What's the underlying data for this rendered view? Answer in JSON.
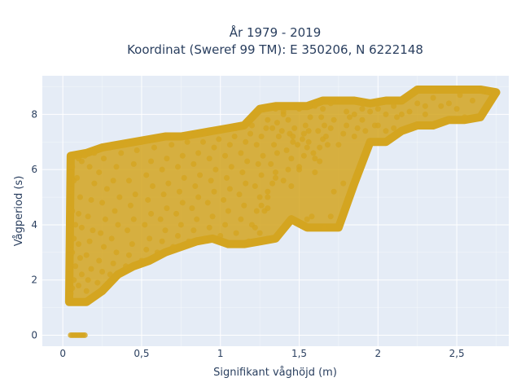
{
  "chart_data": {
    "type": "scatter",
    "title": [
      "År 1979 - 2019",
      "Koordinat (Sweref 99 TM): E 350206, N 6222148"
    ],
    "xlabel": "Signifikant våghöjd (m)",
    "ylabel": "Vågperiod (s)",
    "xlim": [
      -0.13,
      2.83
    ],
    "ylim": [
      -0.4,
      9.4
    ],
    "xticks": [
      0,
      0.5,
      1,
      1.5,
      2,
      2.5
    ],
    "xtick_labels": [
      "0",
      "0,5",
      "1",
      "1,5",
      "2",
      "2,5"
    ],
    "yticks": [
      0,
      2,
      4,
      6,
      8
    ],
    "ytick_labels": [
      "0",
      "2",
      "4",
      "6",
      "8"
    ],
    "grid": true,
    "marker_color": "#d4a520",
    "plot_bg_color": "#e5ecf6",
    "points": [
      [
        0.05,
        1.5
      ],
      [
        0.06,
        1.7
      ],
      [
        0.07,
        2.0
      ],
      [
        0.08,
        2.5
      ],
      [
        0.06,
        3.0
      ],
      [
        0.07,
        3.5
      ],
      [
        0.08,
        4.0
      ],
      [
        0.06,
        4.5
      ],
      [
        0.05,
        5.2
      ],
      [
        0.07,
        5.6
      ],
      [
        0.09,
        1.2
      ],
      [
        0.1,
        1.8
      ],
      [
        0.12,
        2.2
      ],
      [
        0.11,
        2.8
      ],
      [
        0.1,
        3.3
      ],
      [
        0.12,
        3.9
      ],
      [
        0.1,
        4.4
      ],
      [
        0.11,
        5.0
      ],
      [
        0.09,
        5.7
      ],
      [
        0.12,
        6.3
      ],
      [
        0.15,
        1.6
      ],
      [
        0.16,
        2.0
      ],
      [
        0.18,
        2.4
      ],
      [
        0.15,
        2.9
      ],
      [
        0.17,
        3.4
      ],
      [
        0.19,
        3.8
      ],
      [
        0.16,
        4.3
      ],
      [
        0.18,
        4.9
      ],
      [
        0.2,
        5.5
      ],
      [
        0.17,
        6.1
      ],
      [
        0.22,
        1.9
      ],
      [
        0.25,
        2.3
      ],
      [
        0.23,
        2.7
      ],
      [
        0.26,
        3.2
      ],
      [
        0.24,
        3.7
      ],
      [
        0.27,
        4.2
      ],
      [
        0.25,
        4.8
      ],
      [
        0.28,
        5.3
      ],
      [
        0.23,
        5.9
      ],
      [
        0.26,
        6.4
      ],
      [
        0.3,
        2.2
      ],
      [
        0.32,
        2.6
      ],
      [
        0.34,
        3.0
      ],
      [
        0.31,
        3.5
      ],
      [
        0.35,
        4.0
      ],
      [
        0.33,
        4.5
      ],
      [
        0.36,
        5.0
      ],
      [
        0.32,
        5.6
      ],
      [
        0.34,
        6.1
      ],
      [
        0.37,
        6.6
      ],
      [
        0.4,
        2.5
      ],
      [
        0.42,
        2.9
      ],
      [
        0.44,
        3.3
      ],
      [
        0.41,
        3.8
      ],
      [
        0.45,
        4.2
      ],
      [
        0.43,
        4.7
      ],
      [
        0.46,
        5.1
      ],
      [
        0.42,
        5.6
      ],
      [
        0.45,
        6.2
      ],
      [
        0.47,
        6.7
      ],
      [
        0.5,
        2.7
      ],
      [
        0.53,
        3.1
      ],
      [
        0.55,
        3.5
      ],
      [
        0.52,
        4.0
      ],
      [
        0.56,
        4.4
      ],
      [
        0.54,
        4.9
      ],
      [
        0.57,
        5.4
      ],
      [
        0.53,
        5.8
      ],
      [
        0.56,
        6.3
      ],
      [
        0.58,
        6.8
      ],
      [
        0.6,
        3.0
      ],
      [
        0.63,
        3.4
      ],
      [
        0.65,
        3.8
      ],
      [
        0.62,
        4.2
      ],
      [
        0.66,
        4.6
      ],
      [
        0.64,
        5.1
      ],
      [
        0.67,
        5.5
      ],
      [
        0.63,
        6.0
      ],
      [
        0.66,
        6.4
      ],
      [
        0.69,
        6.9
      ],
      [
        0.7,
        3.2
      ],
      [
        0.73,
        3.6
      ],
      [
        0.75,
        4.0
      ],
      [
        0.72,
        4.4
      ],
      [
        0.76,
        4.8
      ],
      [
        0.74,
        5.2
      ],
      [
        0.77,
        5.7
      ],
      [
        0.73,
        6.1
      ],
      [
        0.76,
        6.5
      ],
      [
        0.79,
        7.0
      ],
      [
        0.8,
        3.4
      ],
      [
        0.83,
        3.8
      ],
      [
        0.85,
        4.2
      ],
      [
        0.82,
        4.6
      ],
      [
        0.86,
        5.0
      ],
      [
        0.84,
        5.4
      ],
      [
        0.87,
        5.8
      ],
      [
        0.83,
        6.2
      ],
      [
        0.86,
        6.6
      ],
      [
        0.89,
        7.0
      ],
      [
        0.9,
        3.5
      ],
      [
        0.93,
        3.9
      ],
      [
        0.95,
        4.3
      ],
      [
        0.92,
        4.8
      ],
      [
        0.96,
        5.2
      ],
      [
        0.94,
        5.6
      ],
      [
        0.97,
        6.0
      ],
      [
        0.93,
        6.4
      ],
      [
        0.96,
        6.8
      ],
      [
        0.99,
        7.1
      ],
      [
        1.0,
        3.6
      ],
      [
        1.03,
        4.0
      ],
      [
        1.05,
        4.5
      ],
      [
        1.02,
        4.9
      ],
      [
        1.06,
        5.3
      ],
      [
        1.04,
        5.7
      ],
      [
        1.07,
        6.1
      ],
      [
        1.03,
        6.5
      ],
      [
        1.06,
        6.9
      ],
      [
        1.09,
        7.2
      ],
      [
        1.1,
        3.7
      ],
      [
        1.13,
        4.2
      ],
      [
        1.15,
        4.7
      ],
      [
        1.12,
        5.1
      ],
      [
        1.16,
        5.5
      ],
      [
        1.14,
        5.9
      ],
      [
        1.17,
        6.3
      ],
      [
        1.13,
        6.6
      ],
      [
        1.16,
        7.0
      ],
      [
        1.19,
        7.3
      ],
      [
        1.2,
        4.0
      ],
      [
        1.23,
        4.5
      ],
      [
        1.25,
        5.0
      ],
      [
        1.22,
        5.4
      ],
      [
        1.26,
        5.8
      ],
      [
        1.24,
        6.2
      ],
      [
        1.27,
        6.5
      ],
      [
        1.23,
        6.9
      ],
      [
        1.26,
        7.2
      ],
      [
        1.29,
        7.5
      ],
      [
        1.3,
        5.0
      ],
      [
        1.33,
        5.5
      ],
      [
        1.35,
        5.9
      ],
      [
        1.32,
        6.2
      ],
      [
        1.36,
        6.6
      ],
      [
        1.34,
        6.9
      ],
      [
        1.37,
        7.2
      ],
      [
        1.33,
        7.5
      ],
      [
        1.36,
        7.7
      ],
      [
        1.39,
        7.4
      ],
      [
        1.4,
        5.6
      ],
      [
        1.43,
        6.0
      ],
      [
        1.45,
        6.4
      ],
      [
        1.42,
        6.7
      ],
      [
        1.46,
        7.0
      ],
      [
        1.44,
        7.3
      ],
      [
        1.47,
        7.5
      ],
      [
        1.43,
        7.8
      ],
      [
        1.46,
        7.2
      ],
      [
        1.49,
        6.9
      ],
      [
        1.5,
        6.1
      ],
      [
        1.53,
        6.5
      ],
      [
        1.55,
        6.8
      ],
      [
        1.52,
        7.1
      ],
      [
        1.56,
        7.4
      ],
      [
        1.54,
        7.6
      ],
      [
        1.57,
        7.9
      ],
      [
        1.53,
        7.3
      ],
      [
        1.56,
        7.0
      ],
      [
        1.59,
        6.6
      ],
      [
        1.6,
        6.4
      ],
      [
        1.63,
        6.8
      ],
      [
        1.65,
        7.1
      ],
      [
        1.62,
        7.4
      ],
      [
        1.66,
        7.6
      ],
      [
        1.64,
        7.9
      ],
      [
        1.67,
        7.2
      ],
      [
        1.68,
        6.9
      ],
      [
        1.7,
        7.5
      ],
      [
        1.72,
        7.8
      ],
      [
        1.75,
        6.9
      ],
      [
        1.78,
        7.3
      ],
      [
        1.8,
        7.6
      ],
      [
        1.82,
        7.9
      ],
      [
        1.85,
        7.2
      ],
      [
        1.87,
        7.5
      ],
      [
        1.9,
        7.8
      ],
      [
        1.92,
        7.4
      ],
      [
        1.95,
        8.1
      ],
      [
        1.98,
        7.6
      ],
      [
        2.0,
        7.6
      ],
      [
        2.05,
        8.0
      ],
      [
        2.1,
        8.3
      ],
      [
        2.12,
        7.9
      ],
      [
        2.15,
        8.5
      ],
      [
        2.2,
        8.1
      ],
      [
        2.25,
        8.4
      ],
      [
        2.3,
        8.0
      ],
      [
        2.35,
        8.6
      ],
      [
        2.4,
        8.3
      ],
      [
        2.45,
        7.8
      ],
      [
        2.5,
        8.2
      ],
      [
        2.55,
        7.9
      ],
      [
        2.6,
        8.5
      ],
      [
        2.7,
        8.8
      ],
      [
        2.63,
        8.9
      ],
      [
        2.52,
        8.7
      ],
      [
        2.35,
        8.9
      ],
      [
        2.1,
        7.5
      ],
      [
        1.95,
        7.0
      ],
      [
        1.55,
        4.2
      ],
      [
        1.58,
        4.3
      ],
      [
        1.66,
        3.9
      ],
      [
        1.7,
        4.3
      ],
      [
        1.78,
        5.5
      ],
      [
        1.72,
        5.2
      ],
      [
        1.6,
        5.9
      ],
      [
        1.63,
        6.3
      ],
      [
        1.5,
        6.0
      ],
      [
        1.45,
        5.4
      ],
      [
        1.28,
        4.5
      ],
      [
        1.3,
        4.6
      ],
      [
        1.22,
        3.9
      ],
      [
        1.25,
        3.7
      ],
      [
        1.18,
        3.4
      ],
      [
        1.1,
        3.3
      ],
      [
        1.3,
        3.5
      ],
      [
        1.26,
        4.7
      ],
      [
        1.3,
        5.2
      ],
      [
        1.35,
        5.7
      ],
      [
        0.05,
        0.0
      ],
      [
        0.06,
        0.0
      ],
      [
        0.07,
        0.0
      ],
      [
        0.08,
        0.0
      ],
      [
        0.09,
        0.0
      ],
      [
        0.1,
        0.0
      ],
      [
        0.11,
        0.0
      ],
      [
        0.12,
        0.0
      ],
      [
        0.13,
        0.0
      ],
      [
        0.14,
        0.0
      ],
      [
        0.04,
        2.4
      ],
      [
        0.04,
        3.1
      ],
      [
        0.04,
        3.8
      ],
      [
        0.04,
        4.6
      ],
      [
        0.05,
        5.3
      ],
      [
        0.05,
        5.9
      ],
      [
        0.06,
        6.1
      ],
      [
        0.1,
        6.4
      ],
      [
        0.14,
        6.5
      ],
      [
        0.2,
        6.6
      ],
      [
        0.3,
        6.8
      ],
      [
        0.4,
        6.9
      ],
      [
        0.5,
        7.0
      ],
      [
        0.6,
        7.1
      ],
      [
        0.7,
        7.2
      ],
      [
        0.8,
        7.2
      ],
      [
        0.9,
        7.3
      ],
      [
        1.0,
        7.4
      ],
      [
        1.1,
        7.5
      ],
      [
        1.2,
        7.6
      ],
      [
        1.3,
        7.8
      ],
      [
        1.4,
        8.0
      ],
      [
        1.5,
        8.2
      ],
      [
        1.6,
        8.3
      ],
      [
        1.7,
        8.4
      ],
      [
        1.8,
        8.1
      ],
      [
        1.9,
        8.2
      ],
      [
        1.35,
        8.2
      ],
      [
        1.4,
        8.1
      ],
      [
        1.45,
        8.3
      ],
      [
        1.65,
        8.2
      ],
      [
        1.75,
        8.5
      ],
      [
        1.85,
        8.0
      ],
      [
        1.9,
        8.4
      ],
      [
        2.0,
        8.2
      ],
      [
        2.05,
        7.4
      ],
      [
        2.15,
        8.0
      ],
      [
        2.25,
        7.6
      ],
      [
        2.3,
        8.3
      ],
      [
        2.45,
        8.4
      ]
    ]
  }
}
